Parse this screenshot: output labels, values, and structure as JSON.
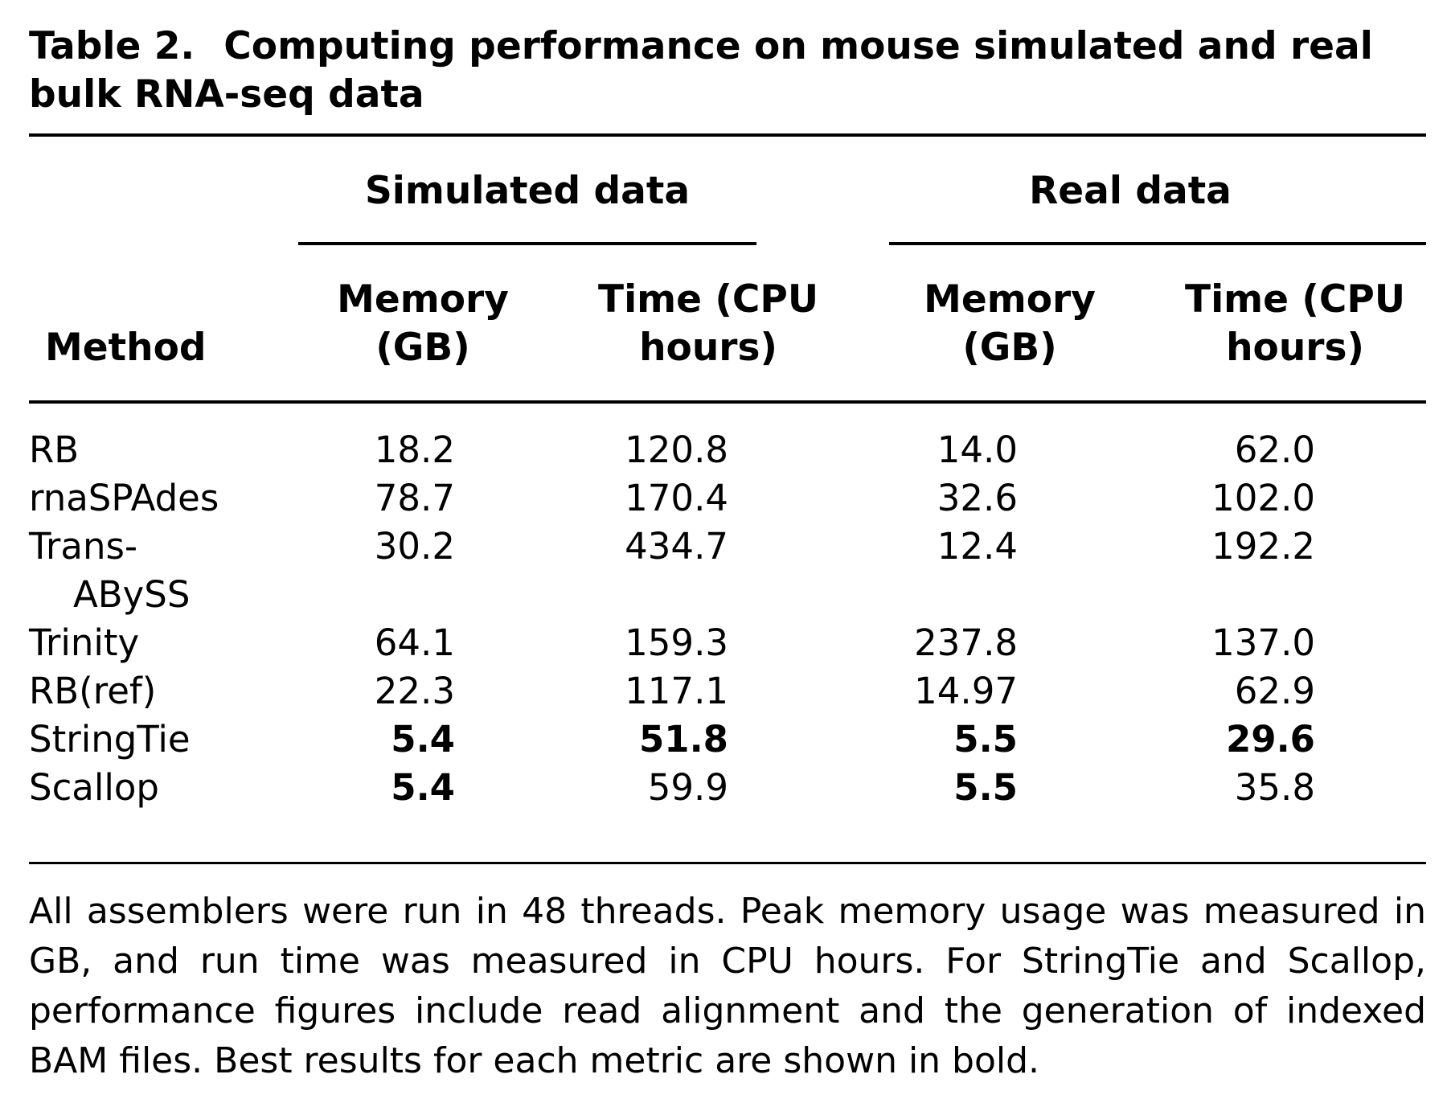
{
  "caption": {
    "label": "Table 2.",
    "title": "Computing performance on mouse simulated and real bulk RNA-seq data"
  },
  "groups": {
    "simulated": "Simulated data",
    "real": "Real data"
  },
  "columns": {
    "method": "Method",
    "sim_memory": [
      "Memory",
      "(GB)"
    ],
    "sim_time": [
      "Time (CPU",
      "hours)"
    ],
    "real_memory": [
      "Memory",
      "(GB)"
    ],
    "real_time": [
      "Time (CPU",
      "hours)"
    ]
  },
  "rows": [
    {
      "method": [
        "RB"
      ],
      "sim_mem": "18.2",
      "sim_time": "120.8",
      "real_mem": "14.0",
      "real_time": "62.0",
      "bold": []
    },
    {
      "method": [
        "rnaSPAdes"
      ],
      "sim_mem": "78.7",
      "sim_time": "170.4",
      "real_mem": "32.6",
      "real_time": "102.0",
      "bold": []
    },
    {
      "method": [
        "Trans-",
        "ABySS"
      ],
      "sim_mem": "30.2",
      "sim_time": "434.7",
      "real_mem": "12.4",
      "real_time": "192.2",
      "bold": []
    },
    {
      "method": [
        "Trinity"
      ],
      "sim_mem": "64.1",
      "sim_time": "159.3",
      "real_mem": "237.8",
      "real_time": "137.0",
      "bold": []
    },
    {
      "method": [
        "RB(ref)"
      ],
      "sim_mem": "22.3",
      "sim_time": "117.1",
      "real_mem": "14.97",
      "real_time": "62.9",
      "bold": []
    },
    {
      "method": [
        "StringTie"
      ],
      "sim_mem": "5.4",
      "sim_time": "51.8",
      "real_mem": "5.5",
      "real_time": "29.6",
      "bold": [
        "sim_mem",
        "sim_time",
        "real_mem",
        "real_time"
      ]
    },
    {
      "method": [
        "Scallop"
      ],
      "sim_mem": "5.4",
      "sim_time": "59.9",
      "real_mem": "5.5",
      "real_time": "35.8",
      "bold": [
        "sim_mem",
        "real_mem"
      ]
    }
  ],
  "footnote": "All assemblers were run in 48 threads. Peak memory usage was measured in GB, and run time was measured in CPU hours. For StringTie and Scallop, performance figures include read alignment and the generation of indexed BAM files. Best results for each metric are shown in bold."
}
